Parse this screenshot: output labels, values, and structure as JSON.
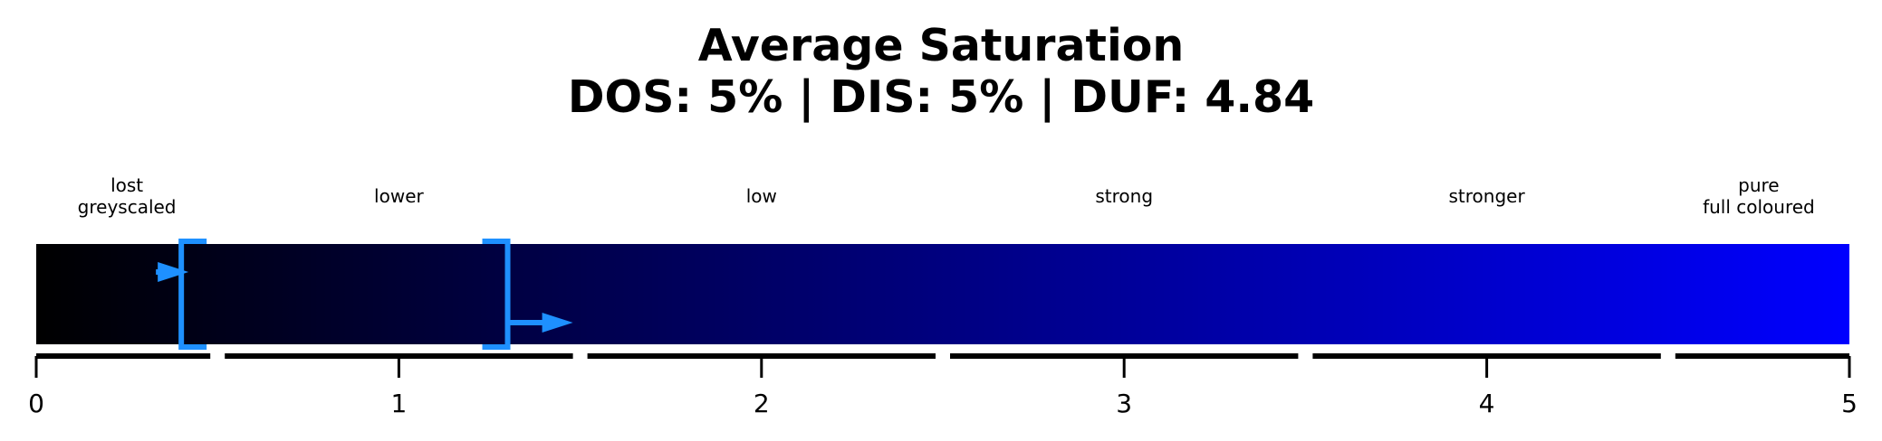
{
  "chart_data": {
    "type": "bar",
    "title": "Average Saturation",
    "subtitle": "DOS: 5% | DIS: 5% | DUF: 4.84",
    "xlim": [
      0,
      5
    ],
    "ticks": [
      0,
      1,
      2,
      3,
      4,
      5
    ],
    "tick_labels": [
      "0",
      "1",
      "2",
      "3",
      "4",
      "5"
    ],
    "gradient": {
      "start_color": "#000000",
      "end_color": "#0000ff"
    },
    "categories": [
      {
        "label": "lost\ngreyscaled",
        "start": 0,
        "end": 0.5
      },
      {
        "label": "lower",
        "start": 0.5,
        "end": 1.5
      },
      {
        "label": "low",
        "start": 1.5,
        "end": 2.5
      },
      {
        "label": "strong",
        "start": 2.5,
        "end": 3.5
      },
      {
        "label": "stronger",
        "start": 3.5,
        "end": 4.5
      },
      {
        "label": "pure\nfull coloured",
        "start": 4.5,
        "end": 5
      }
    ],
    "brackets": {
      "left": 0.4,
      "right": 1.3,
      "color": "#1e90ff"
    },
    "arrows": [
      {
        "from": 0.33,
        "to": 0.42,
        "color": "#1e90ff"
      },
      {
        "from": 1.3,
        "to": 1.48,
        "color": "#1e90ff"
      }
    ]
  }
}
